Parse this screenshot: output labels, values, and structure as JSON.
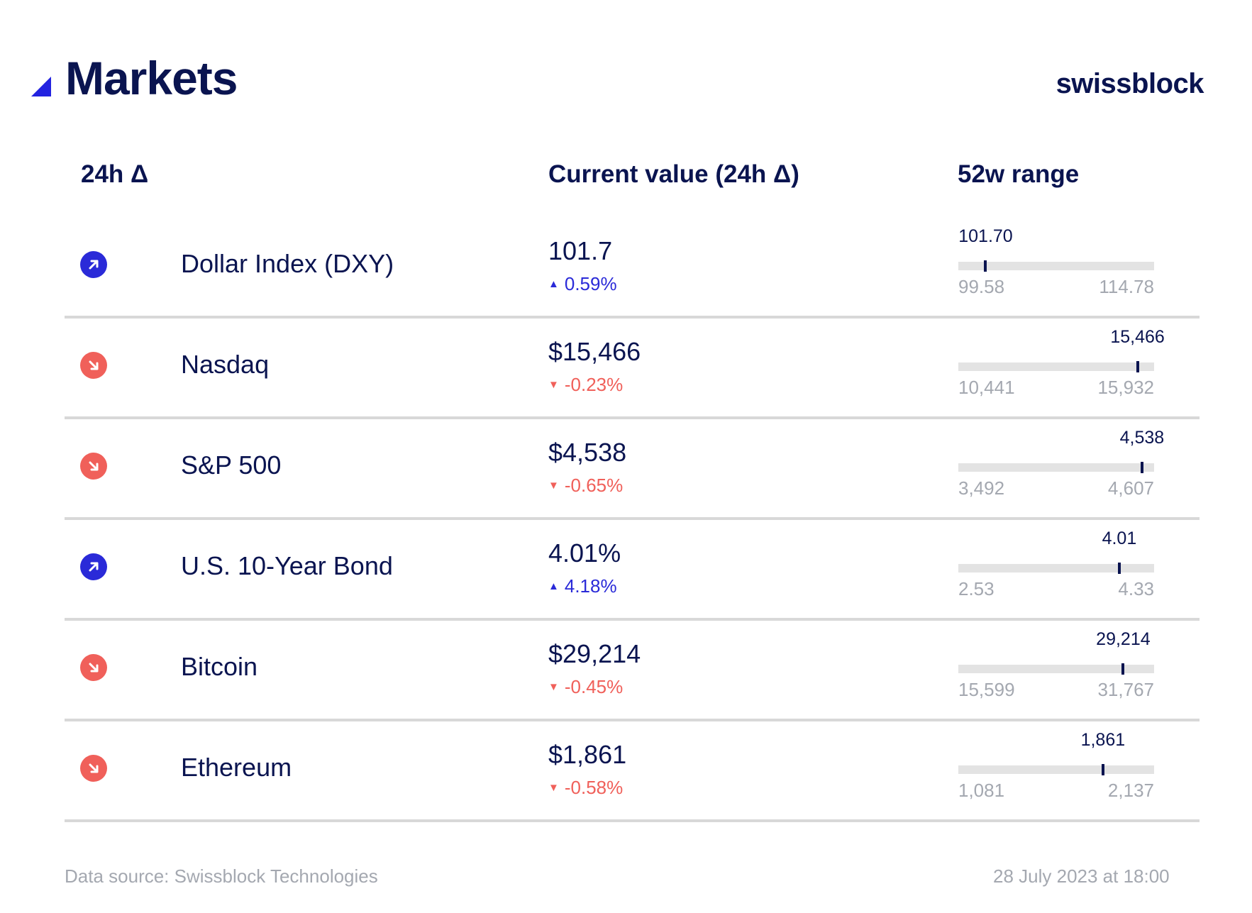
{
  "header": {
    "title": "Markets",
    "brand": "swissblock",
    "accent_color": "#2323e0"
  },
  "columns": {
    "delta": "24h Δ",
    "value": "Current value (24h Δ)",
    "range": "52w range"
  },
  "colors": {
    "up": "#2a2ad8",
    "down": "#f0605a",
    "navy": "#0a1450",
    "track": "#e3e3e3"
  },
  "chart_data": {
    "type": "table",
    "title": "Markets",
    "rows": [
      {
        "name": "Dollar Index (DXY)",
        "direction": "up",
        "value": "101.7",
        "change": "0.59%",
        "range_current": 101.7,
        "range_current_label": "101.70",
        "range_min": 99.58,
        "range_min_label": "99.58",
        "range_max": 114.78,
        "range_max_label": "114.78"
      },
      {
        "name": "Nasdaq",
        "direction": "down",
        "value": "$15,466",
        "change": "-0.23%",
        "range_current": 15466,
        "range_current_label": "15,466",
        "range_min": 10441,
        "range_min_label": "10,441",
        "range_max": 15932,
        "range_max_label": "15,932"
      },
      {
        "name": "S&P 500",
        "direction": "down",
        "value": "$4,538",
        "change": "-0.65%",
        "range_current": 4538,
        "range_current_label": "4,538",
        "range_min": 3492,
        "range_min_label": "3,492",
        "range_max": 4607,
        "range_max_label": "4,607"
      },
      {
        "name": "U.S. 10-Year Bond",
        "direction": "up",
        "value": "4.01%",
        "change": "4.18%",
        "range_current": 4.01,
        "range_current_label": "4.01",
        "range_min": 2.53,
        "range_min_label": "2.53",
        "range_max": 4.33,
        "range_max_label": "4.33"
      },
      {
        "name": "Bitcoin",
        "direction": "down",
        "value": "$29,214",
        "change": "-0.45%",
        "range_current": 29214,
        "range_current_label": "29,214",
        "range_min": 15599,
        "range_min_label": "15,599",
        "range_max": 31767,
        "range_max_label": "31,767"
      },
      {
        "name": "Ethereum",
        "direction": "down",
        "value": "$1,861",
        "change": "-0.58%",
        "range_current": 1861,
        "range_current_label": "1,861",
        "range_min": 1081,
        "range_min_label": "1,081",
        "range_max": 2137,
        "range_max_label": "2,137"
      }
    ]
  },
  "footer": {
    "source": "Data source: Swissblock Technologies",
    "timestamp": "28 July 2023 at 18:00"
  }
}
